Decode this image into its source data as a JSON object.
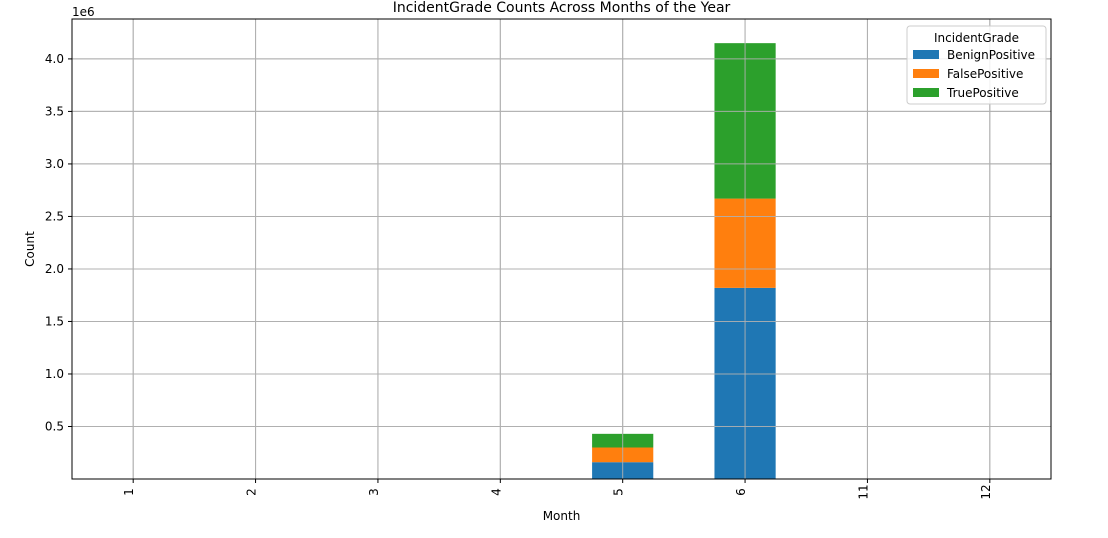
{
  "chart_data": {
    "type": "bar",
    "stacked": true,
    "title": "IncidentGrade Counts Across Months of the Year",
    "xlabel": "Month",
    "ylabel": "Count",
    "y_offset_label": "1e6",
    "categories": [
      "1",
      "2",
      "3",
      "4",
      "5",
      "6",
      "11",
      "12"
    ],
    "ylim": [
      0,
      4.38
    ],
    "yticks": [
      0.5,
      1.0,
      1.5,
      2.0,
      2.5,
      3.0,
      3.5,
      4.0
    ],
    "ytick_labels": [
      "0.5",
      "1.0",
      "1.5",
      "2.0",
      "2.5",
      "3.0",
      "3.5",
      "4.0"
    ],
    "grid": true,
    "legend": {
      "title": "IncidentGrade",
      "position": "top-right"
    },
    "series": [
      {
        "name": "BenignPositive",
        "color": "#1f77b4",
        "values": [
          0,
          0,
          0,
          0,
          0.16,
          1.82,
          0,
          0
        ]
      },
      {
        "name": "FalsePositive",
        "color": "#ff7f0e",
        "values": [
          0,
          0,
          0,
          0,
          0.14,
          0.85,
          0,
          0
        ]
      },
      {
        "name": "TruePositive",
        "color": "#2ca02c",
        "values": [
          0,
          0,
          0,
          0,
          0.13,
          1.48,
          0,
          0
        ]
      }
    ]
  }
}
